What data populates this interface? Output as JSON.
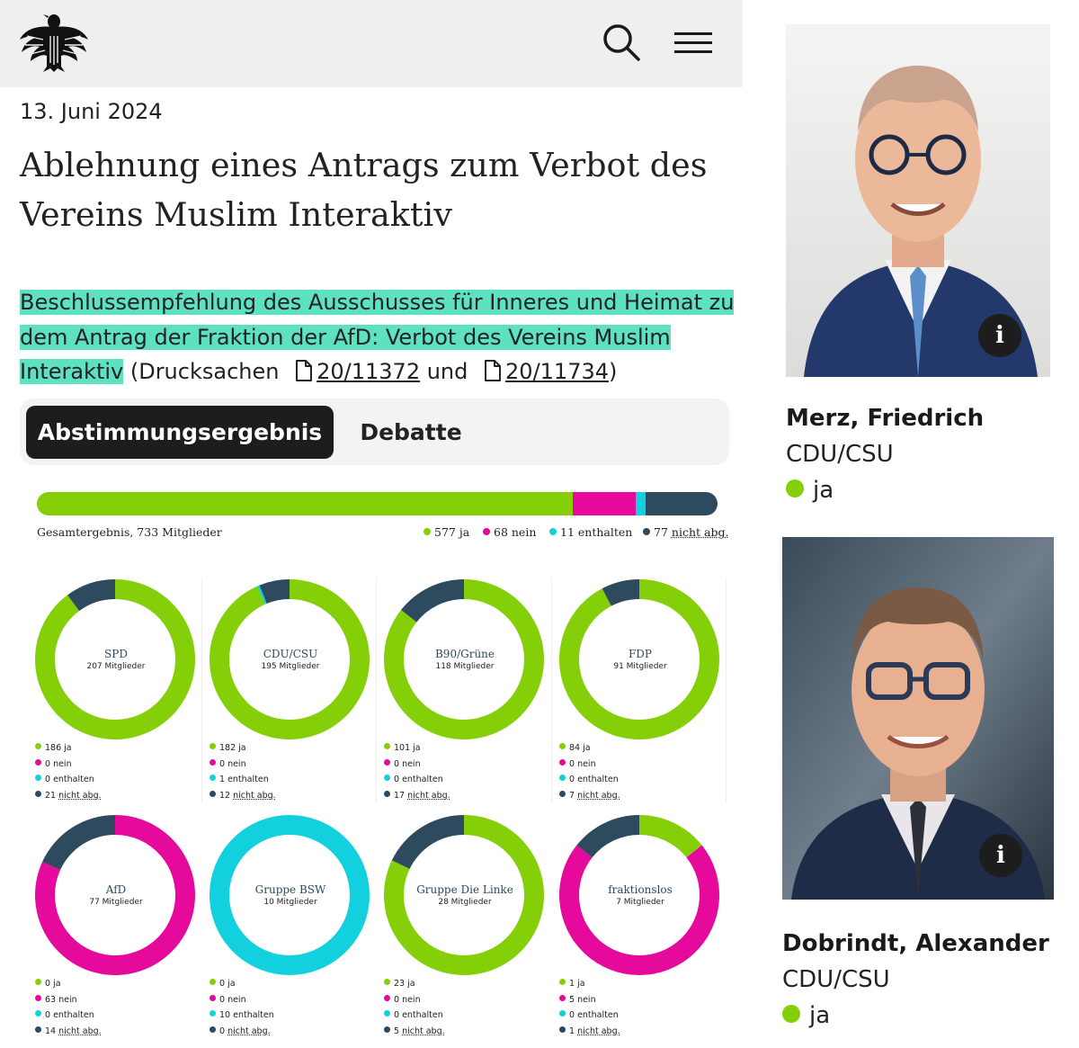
{
  "colors": {
    "ja": "#84cf08",
    "nein": "#e5099c",
    "enthalten": "#13d0df",
    "nicht_abg": "#2e4a5e",
    "highlight": "#5ee1c0"
  },
  "header": {
    "logo_icon": "bundesadler-icon",
    "search_icon": "search-icon",
    "menu_icon": "hamburger-menu-icon"
  },
  "date": "13. Juni 2024",
  "title": "Ablehnung eines Antrags zum Verbot des Vereins Muslim Interaktiv",
  "description": {
    "highlighted": "Beschlussempfehlung des Ausschusses für Inneres und Heimat zu dem Antrag der Fraktion der AfD: Verbot des Vereins Muslim Interaktiv",
    "prefix": " (Drucksachen",
    "doc1": "20/11372",
    "connector": " und",
    "doc2": "20/11734",
    "suffix": ")"
  },
  "tabs": {
    "active": "Abstimmungsergebnis",
    "other": "Debatte"
  },
  "total": {
    "label": "Gesamtergebnis, 733 Mitglieder",
    "ja": 577,
    "nein": 68,
    "enthalten": 11,
    "nicht_abg": 77,
    "legend": {
      "ja": "577 ja",
      "nein": "68 nein",
      "enthalten": "11 enthalten",
      "nicht_abg_num": "77",
      "nicht_abg_text": "nicht abg."
    }
  },
  "chart_data": [
    {
      "type": "pie",
      "name": "SPD",
      "members": "207 Mitglieder",
      "ja": 186,
      "nein": 0,
      "enthalten": 0,
      "nicht_abg": 21,
      "labels": {
        "ja": "186 ja",
        "nein": "0 nein",
        "enthalten": "0 enthalten",
        "nicht_abg_num": "21",
        "nicht_abg_text": "nicht abg."
      }
    },
    {
      "type": "pie",
      "name": "CDU/CSU",
      "members": "195 Mitglieder",
      "ja": 182,
      "nein": 0,
      "enthalten": 1,
      "nicht_abg": 12,
      "labels": {
        "ja": "182 ja",
        "nein": "0 nein",
        "enthalten": "1 enthalten",
        "nicht_abg_num": "12",
        "nicht_abg_text": "nicht abg."
      }
    },
    {
      "type": "pie",
      "name": "B90/Grüne",
      "members": "118 Mitglieder",
      "ja": 101,
      "nein": 0,
      "enthalten": 0,
      "nicht_abg": 17,
      "labels": {
        "ja": "101 ja",
        "nein": "0 nein",
        "enthalten": "0 enthalten",
        "nicht_abg_num": "17",
        "nicht_abg_text": "nicht abg."
      }
    },
    {
      "type": "pie",
      "name": "FDP",
      "members": "91 Mitglieder",
      "ja": 84,
      "nein": 0,
      "enthalten": 0,
      "nicht_abg": 7,
      "labels": {
        "ja": "84 ja",
        "nein": "0 nein",
        "enthalten": "0 enthalten",
        "nicht_abg_num": "7",
        "nicht_abg_text": "nicht abg."
      }
    },
    {
      "type": "pie",
      "name": "AfD",
      "members": "77 Mitglieder",
      "ja": 0,
      "nein": 63,
      "enthalten": 0,
      "nicht_abg": 14,
      "labels": {
        "ja": "0 ja",
        "nein": "63 nein",
        "enthalten": "0 enthalten",
        "nicht_abg_num": "14",
        "nicht_abg_text": "nicht abg."
      }
    },
    {
      "type": "pie",
      "name": "Gruppe BSW",
      "members": "10 Mitglieder",
      "ja": 0,
      "nein": 0,
      "enthalten": 10,
      "nicht_abg": 0,
      "labels": {
        "ja": "0 ja",
        "nein": "0 nein",
        "enthalten": "10 enthalten",
        "nicht_abg_num": "0",
        "nicht_abg_text": "nicht abg."
      }
    },
    {
      "type": "pie",
      "name": "Gruppe Die Linke",
      "members": "28 Mitglieder",
      "ja": 23,
      "nein": 0,
      "enthalten": 0,
      "nicht_abg": 5,
      "labels": {
        "ja": "23 ja",
        "nein": "0 nein",
        "enthalten": "0 enthalten",
        "nicht_abg_num": "5",
        "nicht_abg_text": "nicht abg."
      }
    },
    {
      "type": "pie",
      "name": "fraktionslos",
      "members": "7 Mitglieder",
      "ja": 1,
      "nein": 5,
      "enthalten": 0,
      "nicht_abg": 1,
      "labels": {
        "ja": "1 ja",
        "nein": "5 nein",
        "enthalten": "0 enthalten",
        "nicht_abg_num": "1",
        "nicht_abg_text": "nicht abg."
      }
    }
  ],
  "members": [
    {
      "name": "Merz, Friedrich",
      "party": "CDU/CSU",
      "vote": "ja",
      "info_icon": "info-icon"
    },
    {
      "name": "Dobrindt, Alexander",
      "party": "CDU/CSU",
      "vote": "ja",
      "info_icon": "info-icon"
    }
  ]
}
